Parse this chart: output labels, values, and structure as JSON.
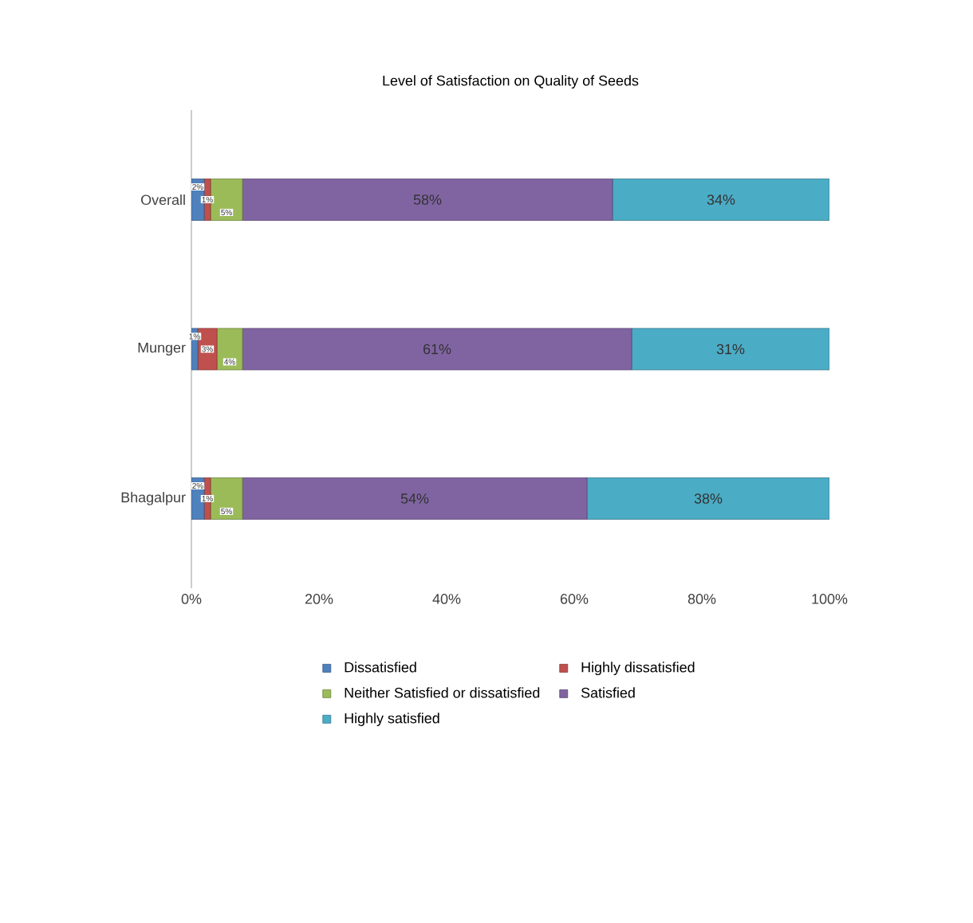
{
  "chart_data": {
    "type": "bar",
    "orientation": "horizontal",
    "stacked": true,
    "title": "Level of Satisfaction on Quality of Seeds",
    "categories": [
      "Overall",
      "Munger",
      "Bhagalpur"
    ],
    "series": [
      {
        "name": "Dissatisfied",
        "color": "#4f81bd",
        "values": [
          2,
          1,
          2
        ],
        "value_labels": [
          "2%",
          "1%",
          "2%"
        ]
      },
      {
        "name": "Highly dissatisfied",
        "color": "#c0504d",
        "values": [
          1,
          3,
          1
        ],
        "value_labels": [
          "1%",
          "3%",
          "1%"
        ]
      },
      {
        "name": "Neither Satisfied or dissatisfied",
        "color": "#9bbb59",
        "values": [
          5,
          4,
          5
        ],
        "value_labels": [
          "5%",
          "4%",
          "5%"
        ]
      },
      {
        "name": "Satisfied",
        "color": "#8064a2",
        "values": [
          58,
          61,
          54
        ],
        "value_labels": [
          "58%",
          "61%",
          "54%"
        ]
      },
      {
        "name": "Highly satisfied",
        "color": "#4bacc6",
        "values": [
          34,
          31,
          38
        ],
        "value_labels": [
          "34%",
          "31%",
          "38%"
        ]
      }
    ],
    "xlim": [
      0,
      100
    ],
    "xticks": [
      {
        "value": 0,
        "label": "0%"
      },
      {
        "value": 20,
        "label": "20%"
      },
      {
        "value": 40,
        "label": "40%"
      },
      {
        "value": 60,
        "label": "60%"
      },
      {
        "value": 80,
        "label": "80%"
      },
      {
        "value": 100,
        "label": "100%"
      }
    ],
    "grid": false,
    "legend": "bottom"
  }
}
